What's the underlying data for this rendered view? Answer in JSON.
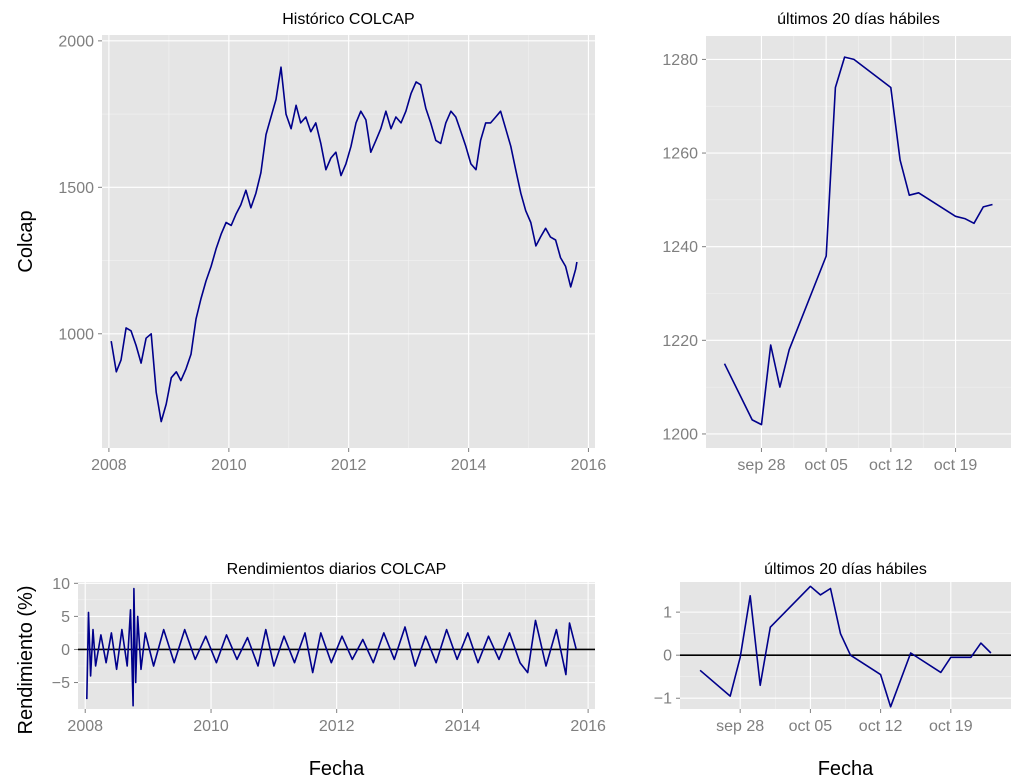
{
  "colors": {
    "series": "#00008b",
    "panel": "#e5e5e5",
    "grid": "#ffffff",
    "tick": "#7f7f7f",
    "reference": "#000000"
  },
  "chart_data": [
    {
      "id": "historico",
      "type": "line",
      "title": "Histórico COLCAP",
      "xlabel": "",
      "ylabel": "Colcap",
      "x_type": "date",
      "xlim": [
        "2007-11-20",
        "2016-02-10"
      ],
      "ylim": [
        610,
        2020
      ],
      "xticks": [
        2008,
        2010,
        2012,
        2014,
        2016
      ],
      "yticks": [
        1000,
        1500,
        2000
      ],
      "grid": true,
      "series": [
        {
          "x": [
            "2008-01-15",
            "2008-02-15",
            "2008-03-15",
            "2008-04-15",
            "2008-05-15",
            "2008-06-15",
            "2008-07-15",
            "2008-08-15",
            "2008-09-15",
            "2008-10-15",
            "2008-11-15",
            "2008-12-15",
            "2009-01-15",
            "2009-02-15",
            "2009-03-15",
            "2009-04-15",
            "2009-05-15",
            "2009-06-15",
            "2009-07-15",
            "2009-08-15",
            "2009-09-15",
            "2009-10-15",
            "2009-11-15",
            "2009-12-15",
            "2010-01-15",
            "2010-02-15",
            "2010-03-15",
            "2010-04-15",
            "2010-05-15",
            "2010-06-15",
            "2010-07-15",
            "2010-08-15",
            "2010-09-15",
            "2010-10-15",
            "2010-11-15",
            "2010-12-15",
            "2011-01-15",
            "2011-02-15",
            "2011-03-15",
            "2011-04-15",
            "2011-05-15",
            "2011-06-15",
            "2011-07-15",
            "2011-08-15",
            "2011-09-15",
            "2011-10-15",
            "2011-11-15",
            "2011-12-15",
            "2012-01-15",
            "2012-02-15",
            "2012-03-15",
            "2012-04-15",
            "2012-05-15",
            "2012-06-15",
            "2012-07-15",
            "2012-08-15",
            "2012-09-15",
            "2012-10-15",
            "2012-11-15",
            "2012-12-15",
            "2013-01-15",
            "2013-02-15",
            "2013-03-15",
            "2013-04-15",
            "2013-05-15",
            "2013-06-15",
            "2013-07-15",
            "2013-08-15",
            "2013-09-15",
            "2013-10-15",
            "2013-11-15",
            "2013-12-15",
            "2014-01-15",
            "2014-02-15",
            "2014-03-15",
            "2014-04-15",
            "2014-05-15",
            "2014-06-15",
            "2014-07-15",
            "2014-08-15",
            "2014-09-15",
            "2014-10-15",
            "2014-11-15",
            "2014-12-15",
            "2015-01-15",
            "2015-02-15",
            "2015-03-15",
            "2015-04-15",
            "2015-05-15",
            "2015-06-15",
            "2015-07-15",
            "2015-08-15",
            "2015-09-15",
            "2015-10-15",
            "2015-10-23"
          ],
          "y": [
            975,
            870,
            910,
            1020,
            1010,
            960,
            900,
            985,
            1000,
            800,
            700,
            760,
            850,
            870,
            840,
            880,
            930,
            1050,
            1120,
            1180,
            1230,
            1290,
            1340,
            1380,
            1370,
            1410,
            1440,
            1490,
            1430,
            1480,
            1550,
            1680,
            1740,
            1800,
            1910,
            1750,
            1700,
            1780,
            1720,
            1740,
            1690,
            1720,
            1650,
            1560,
            1600,
            1620,
            1540,
            1580,
            1640,
            1720,
            1760,
            1730,
            1620,
            1660,
            1700,
            1760,
            1700,
            1740,
            1720,
            1760,
            1820,
            1860,
            1850,
            1770,
            1720,
            1660,
            1650,
            1720,
            1760,
            1740,
            1690,
            1640,
            1580,
            1560,
            1660,
            1720,
            1720,
            1740,
            1760,
            1700,
            1640,
            1560,
            1480,
            1420,
            1380,
            1300,
            1330,
            1360,
            1330,
            1320,
            1260,
            1230,
            1160,
            1220,
            1245
          ]
        }
      ]
    },
    {
      "id": "ultimos_nivel",
      "type": "line",
      "title": "últimos 20 días hábiles",
      "xlabel": "",
      "ylabel": "",
      "x_type": "date",
      "xlim": [
        "2015-09-22",
        "2015-10-25"
      ],
      "ylim": [
        1197,
        1285
      ],
      "xticks": [
        "2015-09-28",
        "2015-10-05",
        "2015-10-12",
        "2015-10-19"
      ],
      "xtick_labels": [
        "sep 28",
        "oct 05",
        "oct 12",
        "oct 19"
      ],
      "yticks": [
        1200,
        1220,
        1240,
        1260,
        1280
      ],
      "grid": true,
      "series": [
        {
          "x": [
            "2015-09-24",
            "2015-09-27",
            "2015-09-28",
            "2015-09-29",
            "2015-09-30",
            "2015-10-01",
            "2015-10-05",
            "2015-10-06",
            "2015-10-07",
            "2015-10-08",
            "2015-10-12",
            "2015-10-13",
            "2015-10-14",
            "2015-10-15",
            "2015-10-19",
            "2015-10-20",
            "2015-10-21",
            "2015-10-22",
            "2015-10-23"
          ],
          "y": [
            1215,
            1203,
            1202,
            1219,
            1210,
            1218,
            1238,
            1274,
            1280.5,
            1280,
            1274,
            1258.5,
            1251,
            1251.5,
            1246.5,
            1246,
            1245,
            1248.5,
            1249
          ]
        }
      ]
    },
    {
      "id": "rendimientos",
      "type": "line",
      "title": "Rendimientos diarios COLCAP",
      "xlabel": "Fecha",
      "ylabel": "Rendimiento (%)",
      "x_type": "date",
      "xlim": [
        "2007-11-20",
        "2016-02-10"
      ],
      "ylim": [
        -9,
        10.2
      ],
      "xticks": [
        2008,
        2010,
        2012,
        2014,
        2016
      ],
      "yticks": [
        -5,
        0,
        5,
        10
      ],
      "hline": 0,
      "grid": true,
      "series": [
        {
          "x": [
            "2008-01-10",
            "2008-01-20",
            "2008-02-01",
            "2008-02-15",
            "2008-03-01",
            "2008-04-01",
            "2008-05-01",
            "2008-06-01",
            "2008-07-01",
            "2008-08-01",
            "2008-09-01",
            "2008-09-20",
            "2008-10-05",
            "2008-10-10",
            "2008-10-20",
            "2008-11-01",
            "2008-11-20",
            "2008-12-15",
            "2009-02-01",
            "2009-04-01",
            "2009-06-01",
            "2009-08-01",
            "2009-10-01",
            "2009-12-01",
            "2010-02-01",
            "2010-04-01",
            "2010-06-01",
            "2010-08-01",
            "2010-10-01",
            "2010-11-15",
            "2011-01-01",
            "2011-03-01",
            "2011-05-01",
            "2011-07-01",
            "2011-08-15",
            "2011-10-01",
            "2011-12-01",
            "2012-02-01",
            "2012-04-01",
            "2012-06-01",
            "2012-08-01",
            "2012-10-01",
            "2012-12-01",
            "2013-02-01",
            "2013-04-01",
            "2013-06-01",
            "2013-08-01",
            "2013-10-01",
            "2013-12-01",
            "2014-02-01",
            "2014-04-01",
            "2014-06-01",
            "2014-08-01",
            "2014-10-01",
            "2014-12-01",
            "2015-01-15",
            "2015-03-01",
            "2015-05-01",
            "2015-07-01",
            "2015-08-25",
            "2015-09-15",
            "2015-10-23"
          ],
          "y": [
            -7.5,
            5.6,
            -4,
            3,
            -2.5,
            2.2,
            -2,
            2.5,
            -3,
            3,
            -2.5,
            6,
            -8.5,
            9.2,
            -5,
            5,
            -3,
            2.5,
            -2.5,
            3,
            -2,
            3,
            -1.5,
            2,
            -2,
            2.2,
            -1.5,
            1.8,
            -2.5,
            3,
            -2.5,
            2,
            -2,
            2.5,
            -3.5,
            2.5,
            -2,
            2,
            -1.5,
            1.5,
            -2,
            2.5,
            -1.5,
            3.4,
            -2.5,
            2,
            -2,
            3,
            -1.5,
            2.5,
            -2,
            2,
            -1.5,
            2.5,
            -2,
            -3.5,
            4.4,
            -2.5,
            3,
            -3.8,
            4,
            0.1
          ]
        }
      ]
    },
    {
      "id": "ultimos_rend",
      "type": "line",
      "title": "últimos 20 días hábiles",
      "xlabel": "Fecha",
      "ylabel": "",
      "x_type": "date",
      "xlim": [
        "2015-09-22",
        "2015-10-25"
      ],
      "ylim": [
        -1.25,
        1.7
      ],
      "xticks": [
        "2015-09-28",
        "2015-10-05",
        "2015-10-12",
        "2015-10-19"
      ],
      "xtick_labels": [
        "sep 28",
        "oct 05",
        "oct 12",
        "oct 19"
      ],
      "yticks": [
        -1,
        0,
        1
      ],
      "hline": 0,
      "grid": true,
      "series": [
        {
          "x": [
            "2015-09-24",
            "2015-09-27",
            "2015-09-28",
            "2015-09-29",
            "2015-09-30",
            "2015-10-01",
            "2015-10-05",
            "2015-10-06",
            "2015-10-07",
            "2015-10-08",
            "2015-10-09",
            "2015-10-12",
            "2015-10-13",
            "2015-10-15",
            "2015-10-18",
            "2015-10-19",
            "2015-10-20",
            "2015-10-21",
            "2015-10-22",
            "2015-10-23"
          ],
          "y": [
            -0.35,
            -0.95,
            -0.05,
            1.38,
            -0.7,
            0.65,
            1.6,
            1.4,
            1.55,
            0.5,
            0,
            -0.45,
            -1.2,
            0.05,
            -0.4,
            -0.05,
            -0.05,
            -0.05,
            0.28,
            0.05
          ]
        }
      ]
    }
  ]
}
